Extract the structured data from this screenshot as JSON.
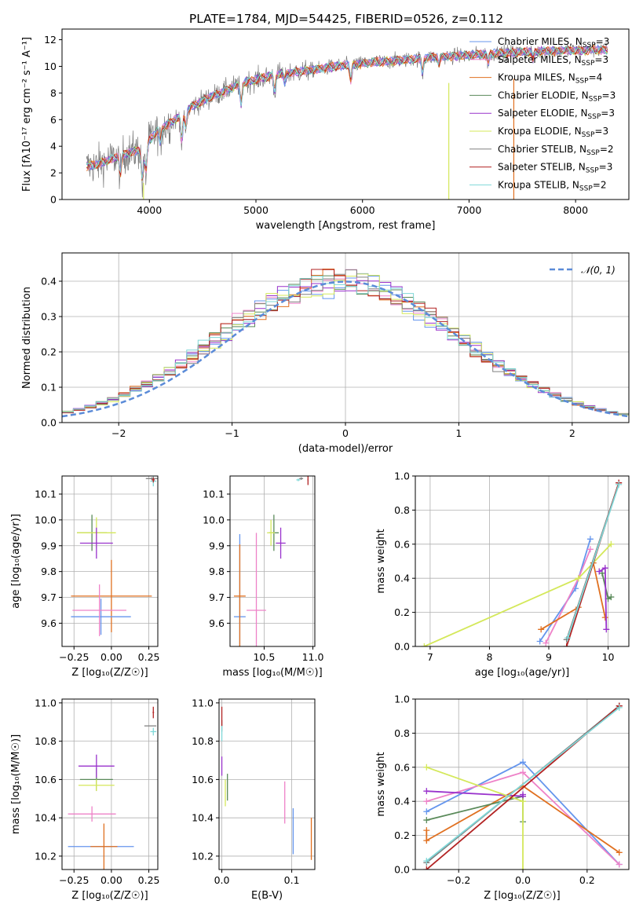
{
  "colors": {
    "Chabrier MILES": "#6495ed",
    "Salpeter MILES": "#ee82c8",
    "Kroupa MILES": "#e07020",
    "Chabrier ELODIE": "#5a8a5a",
    "Salpeter ELODIE": "#9932cc",
    "Kroupa ELODIE": "#d4e85a",
    "Chabrier STELIB": "#808080",
    "Salpeter STELIB": "#b22222",
    "Kroupa STELIB": "#7fd8d8",
    "normal_curve": "#5b8bd8"
  },
  "chart_data": [
    {
      "id": "spectrum",
      "type": "line",
      "title": "PLATE=1784, MJD=54425, FIBERID=0526, z=0.112",
      "xlabel": "wavelength [Angstrom, rest frame]",
      "ylabel": "Flux [fλ10⁻¹⁷ erg cm⁻² s⁻¹ A⁻¹]",
      "xlim": [
        3180,
        8500
      ],
      "ylim": [
        0,
        12.8
      ],
      "xticks": [
        4000,
        5000,
        6000,
        7000,
        8000
      ],
      "yticks": [
        0,
        2,
        4,
        6,
        8,
        10,
        12
      ],
      "grid": false,
      "legend_position": "right",
      "legend": [
        {
          "imf": "Chabrier",
          "lib": "MILES",
          "nssp": "3"
        },
        {
          "imf": "Salpeter",
          "lib": "MILES",
          "nssp": "3"
        },
        {
          "imf": "Kroupa",
          "lib": "MILES",
          "nssp": "4"
        },
        {
          "imf": "Chabrier",
          "lib": "ELODIE",
          "nssp": "3"
        },
        {
          "imf": "Salpeter",
          "lib": "ELODIE",
          "nssp": "3"
        },
        {
          "imf": "Kroupa",
          "lib": "ELODIE",
          "nssp": "3"
        },
        {
          "imf": "Chabrier",
          "lib": "STELIB",
          "nssp": "2"
        },
        {
          "imf": "Salpeter",
          "lib": "STELIB",
          "nssp": "3"
        },
        {
          "imf": "Kroupa",
          "lib": "STELIB",
          "nssp": "2"
        }
      ],
      "continuum": [
        [
          3410,
          2.5
        ],
        [
          3500,
          2.6
        ],
        [
          3600,
          2.9
        ],
        [
          3700,
          3.2
        ],
        [
          3800,
          3.5
        ],
        [
          3900,
          3.7
        ],
        [
          3950,
          3.2
        ],
        [
          4000,
          4.5
        ],
        [
          4100,
          5.3
        ],
        [
          4200,
          5.8
        ],
        [
          4300,
          6.3
        ],
        [
          4400,
          7.0
        ],
        [
          4500,
          7.4
        ],
        [
          4600,
          7.8
        ],
        [
          4700,
          8.1
        ],
        [
          4800,
          8.5
        ],
        [
          4900,
          8.8
        ],
        [
          5000,
          9.0
        ],
        [
          5100,
          9.2
        ],
        [
          5200,
          9.4
        ],
        [
          5300,
          9.5
        ],
        [
          5400,
          9.6
        ],
        [
          5500,
          9.7
        ],
        [
          5600,
          9.8
        ],
        [
          5700,
          9.95
        ],
        [
          5800,
          10.05
        ],
        [
          5900,
          10.1
        ],
        [
          6000,
          10.2
        ],
        [
          6100,
          10.3
        ],
        [
          6200,
          10.35
        ],
        [
          6300,
          10.4
        ],
        [
          6400,
          10.5
        ],
        [
          6500,
          10.55
        ],
        [
          6600,
          10.65
        ],
        [
          6700,
          10.7
        ],
        [
          6800,
          10.75
        ],
        [
          6900,
          10.8
        ],
        [
          7000,
          10.85
        ],
        [
          7100,
          10.9
        ],
        [
          7200,
          10.95
        ],
        [
          7300,
          11.0
        ],
        [
          7400,
          11.05
        ],
        [
          7500,
          11.1
        ],
        [
          7600,
          11.1
        ],
        [
          7700,
          11.15
        ],
        [
          7800,
          11.15
        ],
        [
          7900,
          11.2
        ],
        [
          8000,
          11.2
        ],
        [
          8100,
          11.2
        ],
        [
          8200,
          11.25
        ],
        [
          8300,
          11.25
        ]
      ],
      "spectral_lines": [
        [
          3727,
          1.6
        ],
        [
          3934,
          2.2
        ],
        [
          3968,
          1.8
        ],
        [
          4102,
          1.2
        ],
        [
          4304,
          2.4
        ],
        [
          4341,
          1.4
        ],
        [
          4861,
          1.8
        ],
        [
          5175,
          1.5
        ],
        [
          5270,
          0.8
        ],
        [
          5890,
          1.4
        ],
        [
          6563,
          1.3
        ],
        [
          6717,
          0.6
        ],
        [
          7180,
          0.8
        ],
        [
          7600,
          0.7
        ]
      ]
    },
    {
      "id": "residuals",
      "type": "histogram",
      "xlabel": "(data-model)/error",
      "ylabel": "Normed distribution",
      "xlim": [
        -2.5,
        2.5
      ],
      "ylim": [
        0,
        0.48
      ],
      "xticks": [
        -2,
        -1,
        0,
        1,
        2
      ],
      "yticks": [
        0.0,
        0.1,
        0.2,
        0.3,
        0.4
      ],
      "grid": true,
      "legend_position": "top-right",
      "normal_label": "𝒩(0, 1)",
      "bin_width": 0.1
    },
    {
      "id": "age_vs_Z",
      "type": "scatter",
      "xlabel": "Z [log₁₀(Z/Z☉)]",
      "ylabel": "age  [log₁₀(age/yr)]",
      "xlim": [
        -0.33,
        0.31
      ],
      "ylim": [
        9.51,
        10.17
      ],
      "xticks": [
        -0.25,
        0.0,
        0.25
      ],
      "yticks": [
        9.6,
        9.7,
        9.8,
        9.9,
        10.0,
        10.1
      ],
      "grid": true,
      "points": [
        {
          "model": "Kroupa MILES",
          "x": 0.0,
          "y": 9.705,
          "xerr": 0.27,
          "yerr": 0.14
        },
        {
          "model": "Chabrier MILES",
          "x": -0.07,
          "y": 9.625,
          "xerr": 0.2,
          "yerr": 0.07
        },
        {
          "model": "Salpeter MILES",
          "x": -0.08,
          "y": 9.65,
          "xerr": 0.18,
          "yerr": 0.1
        },
        {
          "model": "Chabrier ELODIE",
          "x": -0.13,
          "y": 9.95,
          "xerr": 0.1,
          "yerr": 0.07
        },
        {
          "model": "Kroupa ELODIE",
          "x": -0.1,
          "y": 9.95,
          "xerr": 0.13,
          "yerr": 0.06
        },
        {
          "model": "Salpeter ELODIE",
          "x": -0.1,
          "y": 9.91,
          "xerr": 0.11,
          "yerr": 0.06
        },
        {
          "model": "Chabrier STELIB",
          "x": 0.27,
          "y": 10.16,
          "xerr": 0.04,
          "yerr": 0.005
        },
        {
          "model": "Kroupa STELIB",
          "x": 0.28,
          "y": 10.15,
          "xerr": 0.02,
          "yerr": 0.02
        },
        {
          "model": "Salpeter STELIB",
          "x": 0.28,
          "y": 10.155,
          "xerr": 0.01,
          "yerr": 0.01
        }
      ]
    },
    {
      "id": "age_vs_mass",
      "type": "scatter",
      "xlabel": "mass [log₁₀(M/M☉)]",
      "ylabel": "",
      "xlim": [
        10.15,
        11.02
      ],
      "ylim": [
        9.51,
        10.17
      ],
      "xticks": [
        10.5,
        11.0
      ],
      "yticks": [
        9.6,
        9.7,
        9.8,
        9.9,
        10.0,
        10.1
      ],
      "grid": true,
      "points": [
        {
          "model": "Chabrier MILES",
          "x": 10.25,
          "y": 9.625,
          "xerr": 0.06,
          "yerr": 0.32
        },
        {
          "model": "Kroupa MILES",
          "x": 10.25,
          "y": 9.705,
          "xerr": 0.06,
          "yerr": 0.2
        },
        {
          "model": "Salpeter MILES",
          "x": 10.42,
          "y": 9.65,
          "xerr": 0.1,
          "yerr": 0.3
        },
        {
          "model": "Chabrier ELODIE",
          "x": 10.6,
          "y": 9.95,
          "xerr": 0.05,
          "yerr": 0.07
        },
        {
          "model": "Kroupa ELODIE",
          "x": 10.57,
          "y": 9.95,
          "xerr": 0.04,
          "yerr": 0.05
        },
        {
          "model": "Salpeter ELODIE",
          "x": 10.67,
          "y": 9.91,
          "xerr": 0.05,
          "yerr": 0.06
        },
        {
          "model": "Chabrier STELIB",
          "x": 10.88,
          "y": 10.16,
          "xerr": 0.02,
          "yerr": 0.005
        },
        {
          "model": "Kroupa STELIB",
          "x": 10.85,
          "y": 10.155,
          "xerr": 0.02,
          "yerr": 0.005
        },
        {
          "model": "Salpeter STELIB",
          "x": 10.95,
          "y": 10.155,
          "xerr": 0.005,
          "yerr": 0.02
        }
      ]
    },
    {
      "id": "weight_vs_age",
      "type": "line",
      "xlabel": "age  [log₁₀(age/yr)]",
      "ylabel": "mass weight",
      "xlim": [
        6.75,
        10.35
      ],
      "ylim": [
        0,
        1.0
      ],
      "xticks": [
        7,
        8,
        9,
        10
      ],
      "yticks": [
        0.0,
        0.2,
        0.4,
        0.6,
        0.8,
        1.0
      ],
      "grid": true,
      "series": [
        {
          "model": "Chabrier MILES",
          "x": [
            8.85,
            9.45,
            9.7
          ],
          "y": [
            0.03,
            0.34,
            0.63
          ]
        },
        {
          "model": "Salpeter MILES",
          "x": [
            8.95,
            9.5,
            9.7
          ],
          "y": [
            0.02,
            0.4,
            0.57
          ]
        },
        {
          "model": "Kroupa MILES",
          "x": [
            8.87,
            9.5,
            9.75,
            9.95
          ],
          "y": [
            0.1,
            0.23,
            0.49,
            0.17
          ]
        },
        {
          "model": "Chabrier ELODIE",
          "x": [
            9.9,
            10.0,
            10.05
          ],
          "y": [
            0.43,
            0.28,
            0.29
          ]
        },
        {
          "model": "Salpeter ELODIE",
          "x": [
            9.85,
            9.95,
            9.97
          ],
          "y": [
            0.44,
            0.46,
            0.1
          ]
        },
        {
          "model": "Kroupa ELODIE",
          "x": [
            6.9,
            9.5,
            10.05
          ],
          "y": [
            0.0,
            0.4,
            0.6
          ]
        },
        {
          "model": "Chabrier STELIB",
          "x": [
            9.3,
            10.18
          ],
          "y": [
            0.04,
            0.96
          ]
        },
        {
          "model": "Salpeter STELIB",
          "x": [
            9.3,
            10.18
          ],
          "y": [
            0.0,
            0.96
          ]
        },
        {
          "model": "Kroupa STELIB",
          "x": [
            9.32,
            10.18
          ],
          "y": [
            0.05,
            0.95
          ]
        }
      ]
    },
    {
      "id": "mass_vs_Z",
      "type": "scatter",
      "xlabel": "Z [log₁₀(Z/Z☉)]",
      "ylabel": "mass [log₁₀(M/M☉)]",
      "xlim": [
        -0.33,
        0.31
      ],
      "ylim": [
        10.13,
        11.02
      ],
      "xticks": [
        -0.25,
        0.0,
        0.25
      ],
      "yticks": [
        10.2,
        10.4,
        10.6,
        10.8,
        11.0
      ],
      "grid": true,
      "points": [
        {
          "model": "Chabrier MILES",
          "x": -0.07,
          "y": 10.25,
          "xerr": 0.22,
          "yerr": 0.0
        },
        {
          "model": "Kroupa MILES",
          "x": -0.05,
          "y": 10.25,
          "xerr": 0.09,
          "yerr": 0.12
        },
        {
          "model": "Salpeter MILES",
          "x": -0.13,
          "y": 10.42,
          "xerr": 0.16,
          "yerr": 0.04
        },
        {
          "model": "Chabrier ELODIE",
          "x": -0.1,
          "y": 10.6,
          "xerr": 0.11,
          "yerr": 0.06
        },
        {
          "model": "Kroupa ELODIE",
          "x": -0.1,
          "y": 10.57,
          "xerr": 0.12,
          "yerr": 0.03
        },
        {
          "model": "Salpeter ELODIE",
          "x": -0.1,
          "y": 10.67,
          "xerr": 0.12,
          "yerr": 0.06
        },
        {
          "model": "Chabrier STELIB",
          "x": 0.26,
          "y": 10.88,
          "xerr": 0.04,
          "yerr": 0.0
        },
        {
          "model": "Kroupa STELIB",
          "x": 0.28,
          "y": 10.85,
          "xerr": 0.02,
          "yerr": 0.02
        },
        {
          "model": "Salpeter STELIB",
          "x": 0.28,
          "y": 10.95,
          "xerr": 0.005,
          "yerr": 0.03
        }
      ]
    },
    {
      "id": "mass_vs_ebv",
      "type": "scatter",
      "xlabel": "E(B-V)",
      "ylabel": "",
      "xlim": [
        -0.004,
        0.133
      ],
      "ylim": [
        10.13,
        11.02
      ],
      "xticks": [
        0.0,
        0.1
      ],
      "yticks": [
        10.2,
        10.4,
        10.6,
        10.8,
        11.0
      ],
      "grid": true,
      "points": [
        {
          "model": "Chabrier MILES",
          "x": 0.102,
          "y": 10.33,
          "xerr": 0.0,
          "yerr": 0.12
        },
        {
          "model": "Kroupa MILES",
          "x": 0.128,
          "y": 10.29,
          "xerr": 0.0,
          "yerr": 0.11
        },
        {
          "model": "Salpeter MILES",
          "x": 0.09,
          "y": 10.48,
          "xerr": 0.0,
          "yerr": 0.11
        },
        {
          "model": "Chabrier ELODIE",
          "x": 0.008,
          "y": 10.56,
          "xerr": 0.0,
          "yerr": 0.07
        },
        {
          "model": "Kroupa ELODIE",
          "x": 0.005,
          "y": 10.53,
          "xerr": 0.0,
          "yerr": 0.07
        },
        {
          "model": "Salpeter ELODIE",
          "x": 0.0,
          "y": 10.67,
          "xerr": 0.0,
          "yerr": 0.05
        },
        {
          "model": "Chabrier STELIB",
          "x": 0.0,
          "y": 10.88,
          "xerr": 0.0,
          "yerr": 0.03
        },
        {
          "model": "Kroupa STELIB",
          "x": 0.0,
          "y": 10.84,
          "xerr": 0.0,
          "yerr": 0.04
        },
        {
          "model": "Salpeter STELIB",
          "x": 0.0,
          "y": 10.93,
          "xerr": 0.0,
          "yerr": 0.05
        }
      ]
    },
    {
      "id": "weight_vs_Z",
      "type": "line",
      "xlabel": "Z [log₁₀(Z/Z☉)]",
      "ylabel": "mass weight",
      "xlim": [
        -0.335,
        0.33
      ],
      "ylim": [
        0,
        1.0
      ],
      "xticks": [
        -0.2,
        0.0,
        0.2
      ],
      "yticks": [
        0.0,
        0.2,
        0.4,
        0.6,
        0.8,
        1.0
      ],
      "grid": true,
      "series": [
        {
          "model": "Chabrier MILES",
          "x": [
            -0.3,
            0.0,
            0.3
          ],
          "y": [
            0.34,
            0.63,
            0.03
          ]
        },
        {
          "model": "Salpeter MILES",
          "x": [
            -0.3,
            0.0,
            0.3
          ],
          "y": [
            0.4,
            0.57,
            0.03
          ]
        },
        {
          "model": "Kroupa MILES",
          "x": [
            -0.3,
            -0.3,
            0.0,
            0.3
          ],
          "y": [
            0.23,
            0.17,
            0.49,
            0.1
          ]
        },
        {
          "model": "Chabrier ELODIE",
          "x": [
            -0.3,
            0.0,
            0.0
          ],
          "y": [
            0.29,
            0.43,
            0.28
          ]
        },
        {
          "model": "Salpeter ELODIE",
          "x": [
            -0.3,
            0.0,
            0.0
          ],
          "y": [
            0.46,
            0.43,
            0.44
          ]
        },
        {
          "model": "Kroupa ELODIE",
          "x": [
            -0.3,
            0.0,
            0.0
          ],
          "y": [
            0.6,
            0.4,
            0.0
          ]
        },
        {
          "model": "Chabrier STELIB",
          "x": [
            -0.3,
            0.3
          ],
          "y": [
            0.04,
            0.96
          ]
        },
        {
          "model": "Salpeter STELIB",
          "x": [
            -0.3,
            0.3
          ],
          "y": [
            0.0,
            0.96
          ]
        },
        {
          "model": "Kroupa STELIB",
          "x": [
            -0.3,
            0.3
          ],
          "y": [
            0.05,
            0.95
          ]
        }
      ]
    }
  ]
}
